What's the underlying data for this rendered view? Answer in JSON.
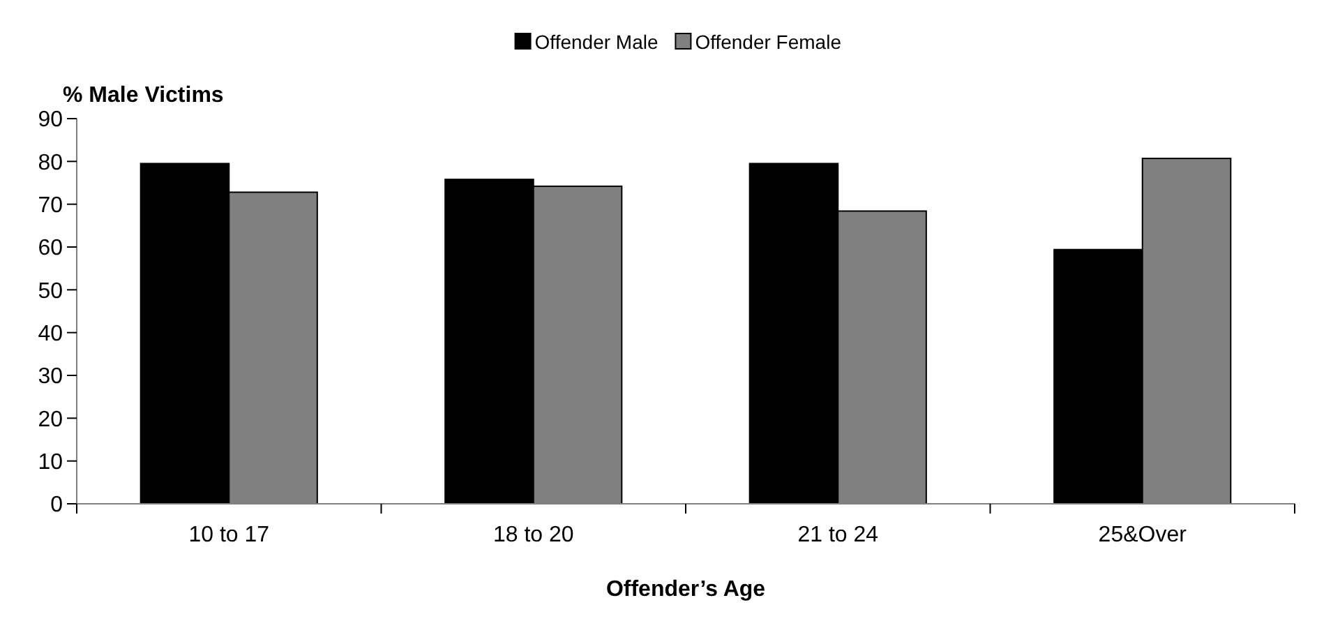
{
  "chart_data": {
    "type": "bar",
    "xlabel": "Offender’s Age",
    "ylabel": "% Male Victims",
    "categories": [
      "10 to 17",
      "18 to 20",
      "21 to 24",
      "25&Over"
    ],
    "series": [
      {
        "name": "Offender Male",
        "color": "#000000",
        "values": [
          79.5,
          75.8,
          79.5,
          59.4
        ]
      },
      {
        "name": "Offender Female",
        "color": "#808080",
        "values": [
          72.8,
          74.2,
          68.4,
          80.7
        ]
      }
    ],
    "ylim": [
      0,
      90
    ],
    "yticks": [
      0,
      10,
      20,
      30,
      40,
      50,
      60,
      70,
      80,
      90
    ],
    "grid": false,
    "legend": "top"
  }
}
